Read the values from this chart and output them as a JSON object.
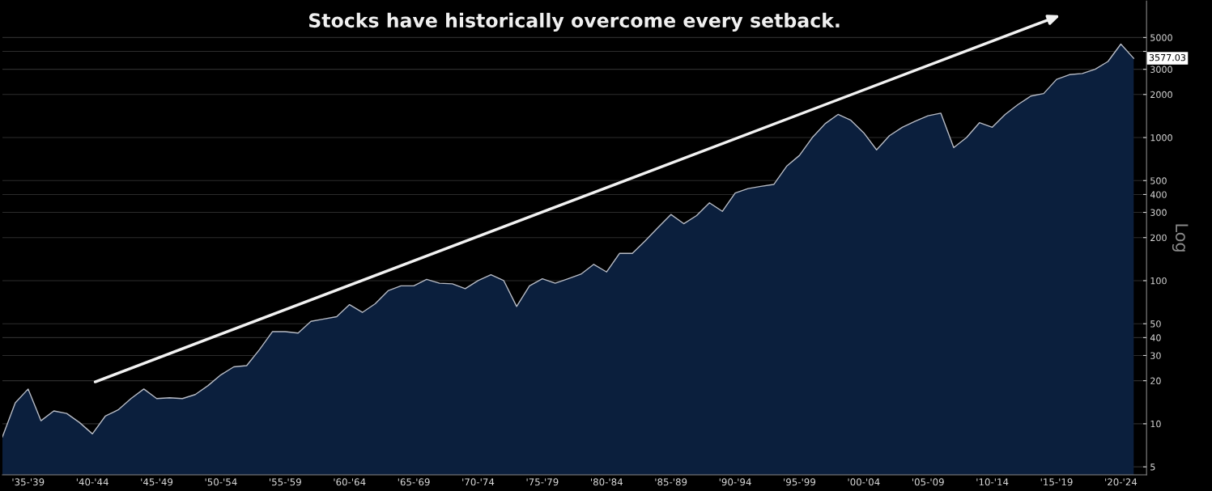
{
  "chart_data": {
    "type": "area",
    "title": "Stocks have historically overcome every setback.",
    "ylabel": "Log",
    "categories": [
      null,
      null,
      "'35-'39",
      null,
      null,
      null,
      null,
      "'40-'44",
      null,
      null,
      null,
      null,
      "'45-'49",
      null,
      null,
      null,
      null,
      "'50-'54",
      null,
      null,
      null,
      null,
      "'55-'59",
      null,
      null,
      null,
      null,
      "'60-'64",
      null,
      null,
      null,
      null,
      "'65-'69",
      null,
      null,
      null,
      null,
      "'70-'74",
      null,
      null,
      null,
      null,
      "'75-'79",
      null,
      null,
      null,
      null,
      "'80-'84",
      null,
      null,
      null,
      null,
      "'85-'89",
      null,
      null,
      null,
      null,
      "'90-'94",
      null,
      null,
      null,
      null,
      "'95-'99",
      null,
      null,
      null,
      null,
      "'00-'04",
      null,
      null,
      null,
      null,
      "'05-'09",
      null,
      null,
      null,
      null,
      "'10-'14",
      null,
      null,
      null,
      null,
      "'15-'19",
      null,
      null,
      null,
      null,
      "'20-'24",
      null
    ],
    "series": [
      {
        "color": "#0b1f3d",
        "values": [
          8.1,
          14,
          17.5,
          10.5,
          12.3,
          11.8,
          10.2,
          8.5,
          11.3,
          12.5,
          15,
          17.5,
          15,
          15.2,
          15,
          16,
          18.5,
          22,
          25,
          25.5,
          33,
          44,
          44,
          43,
          52,
          54,
          56,
          68,
          60,
          69,
          85,
          92,
          92,
          102,
          96,
          95,
          88,
          100,
          110,
          100,
          66,
          92,
          103,
          96,
          103,
          111,
          130,
          115,
          155,
          155,
          190,
          235,
          290,
          250,
          285,
          350,
          305,
          410,
          440,
          456,
          470,
          630,
          750,
          1000,
          1250,
          1450,
          1320,
          1080,
          820,
          1030,
          1180,
          1300,
          1420,
          1480,
          850,
          1000,
          1270,
          1180,
          1450,
          1700,
          1950,
          2030,
          2550,
          2750,
          2800,
          3000,
          3400,
          4500,
          3577.03
        ]
      }
    ],
    "log": "y",
    "ylim": [
      4.4,
      9000
    ],
    "yticks": [
      5,
      10,
      20,
      30,
      40,
      50,
      100,
      200,
      300,
      400,
      500,
      1000,
      2000,
      3000,
      {
        "value": 4000,
        "label": null
      },
      5000
    ],
    "grid": "y",
    "annotations": [
      "3577.03"
    ]
  }
}
